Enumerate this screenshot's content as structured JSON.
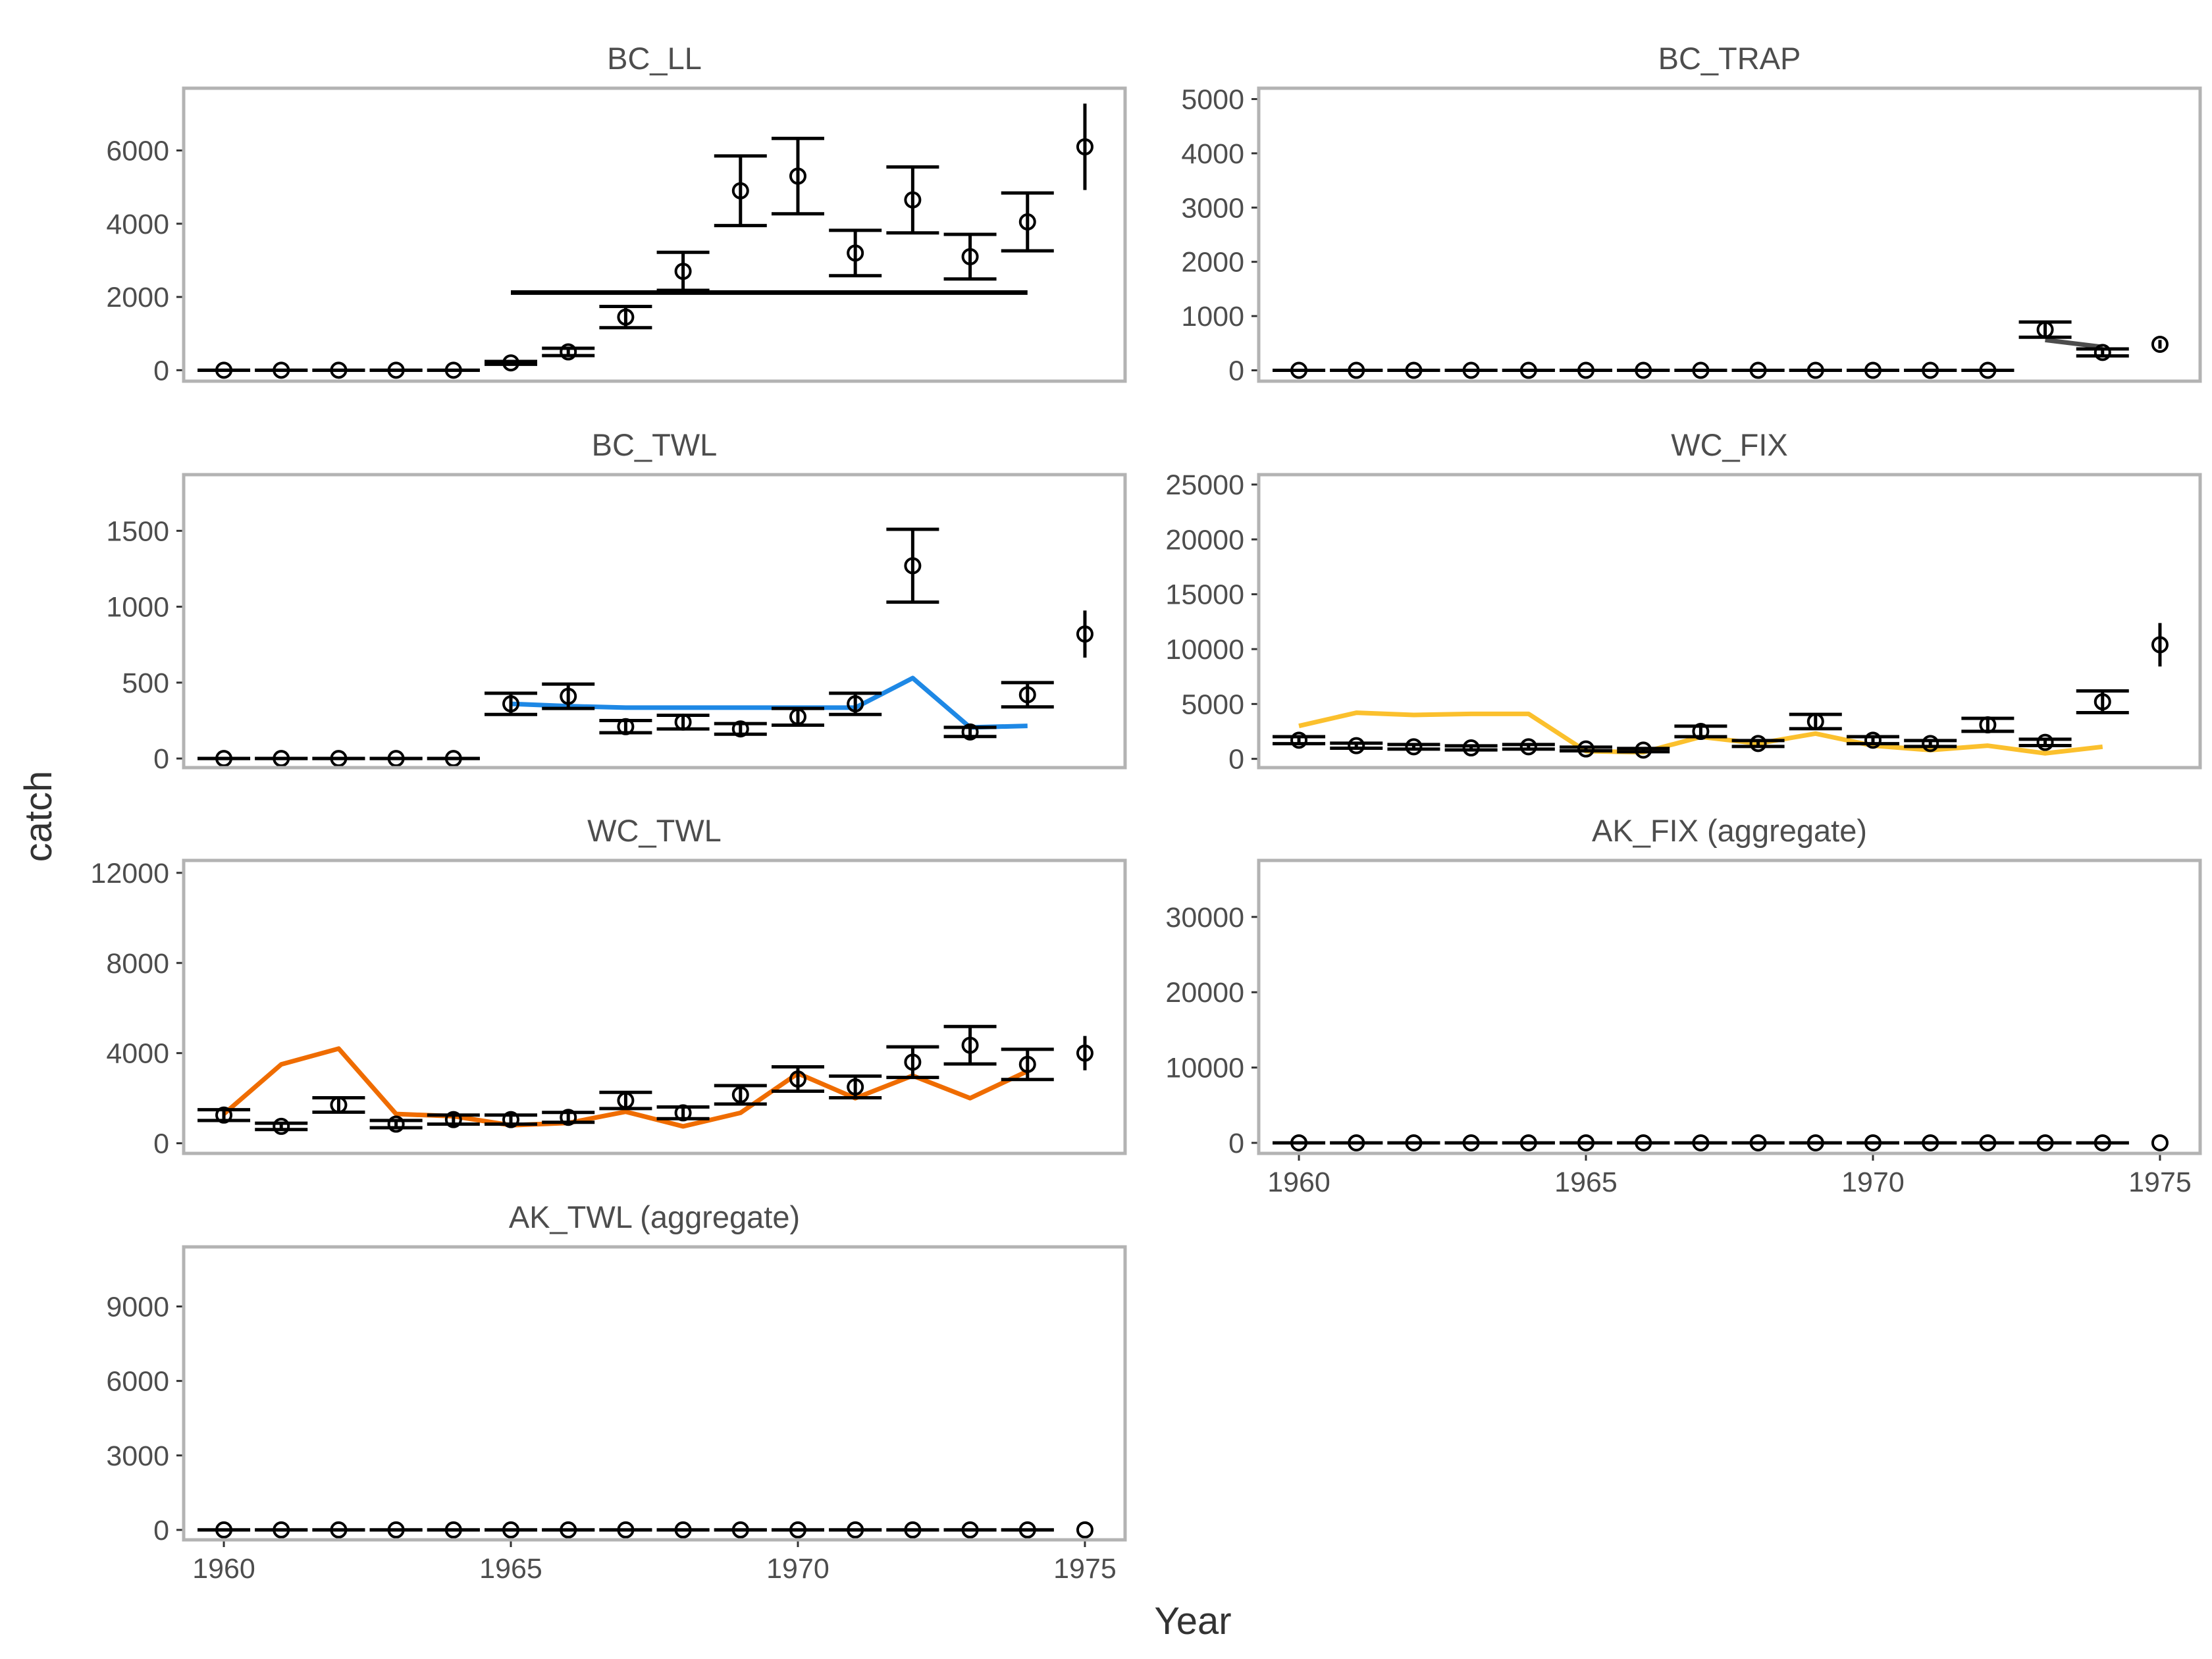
{
  "figure": {
    "xlabel": "Year",
    "ylabel": "catch"
  },
  "chart_data": [
    {
      "type": "line",
      "title": "BC_LL",
      "xlim": [
        1959.3,
        1975.7
      ],
      "ylim": [
        -300,
        7700
      ],
      "yticks": [
        0,
        2000,
        4000,
        6000
      ],
      "xticks": [],
      "observed": {
        "years": [
          1960,
          1961,
          1962,
          1963,
          1964,
          1965,
          1966,
          1967,
          1968,
          1969,
          1970,
          1971,
          1972,
          1973,
          1974,
          1975
        ],
        "values": [
          0,
          0,
          0,
          0,
          0,
          200,
          500,
          1450,
          2700,
          4900,
          5300,
          3200,
          4650,
          3100,
          4050,
          6100
        ],
        "lower": [
          0,
          0,
          0,
          0,
          0,
          160,
          400,
          1160,
          2180,
          3950,
          4270,
          2580,
          3750,
          2490,
          3260,
          4920
        ],
        "upper": [
          0,
          0,
          0,
          0,
          0,
          240,
          600,
          1740,
          3220,
          5850,
          6330,
          3820,
          5550,
          3710,
          4840,
          7280
        ]
      },
      "fit": {
        "color": "#000000",
        "years": [
          1965,
          1966,
          1967,
          1968,
          1969,
          1970,
          1971,
          1972,
          1973,
          1974
        ],
        "values": [
          2120,
          2120,
          2120,
          2120,
          2120,
          2120,
          2120,
          2120,
          2120,
          2120
        ]
      }
    },
    {
      "type": "line",
      "title": "BC_TRAP",
      "xlim": [
        1959.3,
        1975.7
      ],
      "ylim": [
        -200,
        5200
      ],
      "yticks": [
        0,
        1000,
        2000,
        3000,
        4000,
        5000
      ],
      "xticks": [],
      "observed": {
        "years": [
          1960,
          1961,
          1962,
          1963,
          1964,
          1965,
          1966,
          1967,
          1968,
          1969,
          1970,
          1971,
          1972,
          1973,
          1974,
          1975
        ],
        "values": [
          0,
          0,
          0,
          0,
          0,
          0,
          0,
          0,
          0,
          0,
          0,
          0,
          0,
          750,
          330,
          480
        ],
        "lower": [
          0,
          0,
          0,
          0,
          0,
          0,
          0,
          0,
          0,
          0,
          0,
          0,
          0,
          610,
          265,
          400
        ],
        "upper": [
          0,
          0,
          0,
          0,
          0,
          0,
          0,
          0,
          0,
          0,
          0,
          0,
          0,
          890,
          395,
          560
        ]
      },
      "fit": {
        "color": "#4d4d4d",
        "years": [
          1973,
          1974
        ],
        "values": [
          560,
          430
        ]
      }
    },
    {
      "type": "line",
      "title": "BC_TWL",
      "xlim": [
        1959.3,
        1975.7
      ],
      "ylim": [
        -60,
        1870
      ],
      "yticks": [
        0,
        500,
        1000,
        1500
      ],
      "xticks": [],
      "observed": {
        "years": [
          1960,
          1961,
          1962,
          1963,
          1964,
          1965,
          1966,
          1967,
          1968,
          1969,
          1970,
          1971,
          1972,
          1973,
          1974,
          1975
        ],
        "values": [
          0,
          0,
          0,
          0,
          0,
          360,
          410,
          210,
          240,
          195,
          275,
          360,
          1270,
          175,
          420,
          820
        ],
        "lower": [
          0,
          0,
          0,
          0,
          0,
          290,
          330,
          170,
          195,
          160,
          220,
          290,
          1030,
          145,
          340,
          665
        ],
        "upper": [
          0,
          0,
          0,
          0,
          0,
          430,
          490,
          250,
          285,
          230,
          330,
          430,
          1510,
          205,
          500,
          975
        ]
      },
      "fit": {
        "color": "#1e88e5",
        "years": [
          1965,
          1966,
          1967,
          1968,
          1969,
          1970,
          1971,
          1972,
          1973,
          1974
        ],
        "values": [
          360,
          345,
          335,
          335,
          335,
          335,
          335,
          530,
          205,
          215
        ]
      }
    },
    {
      "type": "line",
      "title": "WC_FIX",
      "xlim": [
        1959.3,
        1975.7
      ],
      "ylim": [
        -800,
        25900
      ],
      "yticks": [
        0,
        5000,
        10000,
        15000,
        20000,
        25000
      ],
      "xticks": [],
      "observed": {
        "years": [
          1960,
          1961,
          1962,
          1963,
          1964,
          1965,
          1966,
          1967,
          1968,
          1969,
          1970,
          1971,
          1972,
          1973,
          1974,
          1975
        ],
        "values": [
          1700,
          1200,
          1100,
          1000,
          1100,
          900,
          800,
          2500,
          1400,
          3400,
          1700,
          1400,
          3100,
          1500,
          5200,
          10400
        ],
        "lower": [
          1380,
          970,
          890,
          810,
          890,
          730,
          650,
          2020,
          1130,
          2750,
          1380,
          1130,
          2510,
          1210,
          4210,
          8420
        ],
        "upper": [
          2020,
          1430,
          1310,
          1190,
          1310,
          1070,
          950,
          2980,
          1670,
          4050,
          2020,
          1670,
          3690,
          1790,
          6190,
          12380
        ]
      },
      "fit": {
        "color": "#fbc02d",
        "years": [
          1960,
          1961,
          1962,
          1963,
          1964,
          1965,
          1966,
          1967,
          1968,
          1969,
          1970,
          1971,
          1972,
          1973,
          1974
        ],
        "values": [
          3000,
          4200,
          4000,
          4100,
          4100,
          700,
          600,
          2000,
          1400,
          2300,
          1200,
          800,
          1200,
          500,
          1100
        ]
      }
    },
    {
      "type": "line",
      "title": "WC_TWL",
      "xlim": [
        1959.3,
        1975.7
      ],
      "ylim": [
        -450,
        12550
      ],
      "yticks": [
        0,
        4000,
        8000,
        12000
      ],
      "xticks": [],
      "observed": {
        "years": [
          1960,
          1961,
          1962,
          1963,
          1964,
          1965,
          1966,
          1967,
          1968,
          1969,
          1970,
          1971,
          1972,
          1973,
          1974,
          1975
        ],
        "values": [
          1250,
          750,
          1700,
          850,
          1050,
          1050,
          1150,
          1900,
          1350,
          2150,
          2850,
          2500,
          3600,
          4350,
          3500,
          4000
        ],
        "lower": [
          1010,
          610,
          1380,
          690,
          850,
          850,
          930,
          1540,
          1090,
          1740,
          2310,
          2020,
          2920,
          3520,
          2830,
          3240
        ],
        "upper": [
          1490,
          890,
          2020,
          1010,
          1250,
          1250,
          1370,
          2260,
          1610,
          2560,
          3390,
          2980,
          4280,
          5180,
          4170,
          4760
        ]
      },
      "fit": {
        "color": "#ef6c00",
        "years": [
          1960,
          1961,
          1962,
          1963,
          1964,
          1965,
          1966,
          1967,
          1968,
          1969,
          1970,
          1971,
          1972,
          1973,
          1974
        ],
        "values": [
          1300,
          3500,
          4200,
          1300,
          1200,
          800,
          900,
          1400,
          750,
          1350,
          3100,
          2000,
          3000,
          2000,
          3200
        ]
      }
    },
    {
      "type": "line",
      "title": "AK_FIX (aggregate)",
      "xlim": [
        1959.3,
        1975.7
      ],
      "ylim": [
        -1400,
        37500
      ],
      "yticks": [
        0,
        10000,
        20000,
        30000
      ],
      "xticks": [
        1960,
        1965,
        1970,
        1975
      ],
      "observed": {
        "years": [
          1960,
          1961,
          1962,
          1963,
          1964,
          1965,
          1966,
          1967,
          1968,
          1969,
          1970,
          1971,
          1972,
          1973,
          1974,
          1975
        ],
        "values": [
          0,
          0,
          0,
          0,
          0,
          0,
          0,
          0,
          0,
          0,
          0,
          0,
          0,
          0,
          0,
          0
        ],
        "lower": [
          0,
          0,
          0,
          0,
          0,
          0,
          0,
          0,
          0,
          0,
          0,
          0,
          0,
          0,
          0,
          0
        ],
        "upper": [
          0,
          0,
          0,
          0,
          0,
          0,
          0,
          0,
          0,
          0,
          0,
          0,
          0,
          0,
          0,
          0
        ]
      },
      "fit": {
        "color": "#000000",
        "years": [],
        "values": []
      }
    },
    {
      "type": "line",
      "title": "AK_TWL (aggregate)",
      "xlim": [
        1959.3,
        1975.7
      ],
      "ylim": [
        -400,
        11400
      ],
      "yticks": [
        0,
        3000,
        6000,
        9000
      ],
      "xticks": [
        1960,
        1965,
        1970,
        1975
      ],
      "observed": {
        "years": [
          1960,
          1961,
          1962,
          1963,
          1964,
          1965,
          1966,
          1967,
          1968,
          1969,
          1970,
          1971,
          1972,
          1973,
          1974,
          1975
        ],
        "values": [
          0,
          0,
          0,
          0,
          0,
          0,
          0,
          0,
          0,
          0,
          0,
          0,
          0,
          0,
          0,
          0
        ],
        "lower": [
          0,
          0,
          0,
          0,
          0,
          0,
          0,
          0,
          0,
          0,
          0,
          0,
          0,
          0,
          0,
          0
        ],
        "upper": [
          0,
          0,
          0,
          0,
          0,
          0,
          0,
          0,
          0,
          0,
          0,
          0,
          0,
          0,
          0,
          0
        ]
      },
      "fit": {
        "color": "#000000",
        "years": [],
        "values": []
      }
    }
  ]
}
